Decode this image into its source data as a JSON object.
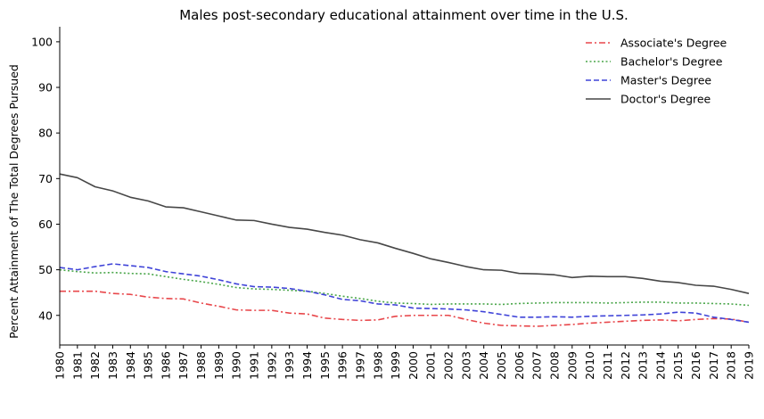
{
  "chart_data": {
    "type": "line",
    "title": "Males post-secondary educational attainment over time in the U.S.",
    "xlabel": "",
    "ylabel": "Percent Attainment of The Total Degrees Pursued",
    "xlim": [
      1980,
      2019
    ],
    "ylim": [
      33.5,
      103.3
    ],
    "yticks": [
      40,
      50,
      60,
      70,
      80,
      90,
      100
    ],
    "grid": false,
    "legend_position": "top-right",
    "x": [
      1980,
      1981,
      1982,
      1983,
      1984,
      1985,
      1986,
      1987,
      1988,
      1989,
      1990,
      1991,
      1992,
      1993,
      1994,
      1995,
      1996,
      1997,
      1998,
      1999,
      2000,
      2001,
      2002,
      2003,
      2004,
      2005,
      2006,
      2007,
      2008,
      2009,
      2010,
      2011,
      2012,
      2013,
      2014,
      2015,
      2016,
      2017,
      2018,
      2019
    ],
    "series": [
      {
        "name": "Associate's Degree",
        "color": "#e8474b",
        "dash": "dashdot",
        "values": [
          45.3,
          45.3,
          45.3,
          44.8,
          44.6,
          44.0,
          43.7,
          43.6,
          42.7,
          42.0,
          41.2,
          41.1,
          41.1,
          40.5,
          40.3,
          39.4,
          39.1,
          38.9,
          39.0,
          39.8,
          40.0,
          40.0,
          40.0,
          39.1,
          38.3,
          37.8,
          37.7,
          37.6,
          37.8,
          38.0,
          38.3,
          38.5,
          38.7,
          38.9,
          39.0,
          38.8,
          39.1,
          39.3,
          39.2,
          38.5
        ]
      },
      {
        "name": "Bachelor's Degree",
        "color": "#4aa64a",
        "dash": "dotted",
        "values": [
          50.0,
          49.6,
          49.3,
          49.4,
          49.2,
          49.1,
          48.5,
          47.9,
          47.4,
          46.8,
          46.1,
          45.8,
          45.7,
          45.5,
          45.3,
          44.8,
          44.2,
          43.7,
          43.1,
          42.7,
          42.6,
          42.4,
          42.5,
          42.5,
          42.5,
          42.4,
          42.6,
          42.7,
          42.8,
          42.8,
          42.8,
          42.7,
          42.8,
          42.9,
          42.9,
          42.7,
          42.7,
          42.6,
          42.5,
          42.2
        ]
      },
      {
        "name": "Master's Degree",
        "color": "#3f43d8",
        "dash": "dashed",
        "values": [
          50.5,
          50.0,
          50.7,
          51.3,
          50.9,
          50.5,
          49.6,
          49.1,
          48.6,
          47.8,
          46.9,
          46.3,
          46.2,
          45.9,
          45.3,
          44.5,
          43.5,
          43.2,
          42.5,
          42.3,
          41.6,
          41.5,
          41.4,
          41.2,
          40.8,
          40.2,
          39.6,
          39.6,
          39.7,
          39.6,
          39.8,
          39.9,
          40.0,
          40.1,
          40.3,
          40.7,
          40.5,
          39.6,
          39.1,
          38.5
        ]
      },
      {
        "name": "Doctor's Degree",
        "color": "#474747",
        "dash": "solid",
        "values": [
          71.0,
          70.2,
          68.2,
          67.3,
          65.9,
          65.1,
          63.8,
          63.6,
          62.7,
          61.8,
          60.9,
          60.8,
          60.0,
          59.3,
          58.9,
          58.2,
          57.6,
          56.6,
          55.9,
          54.7,
          53.6,
          52.4,
          51.6,
          50.7,
          50.0,
          49.9,
          49.2,
          49.1,
          48.9,
          48.3,
          48.6,
          48.5,
          48.5,
          48.1,
          47.5,
          47.2,
          46.6,
          46.4,
          45.7,
          44.8
        ]
      }
    ]
  }
}
